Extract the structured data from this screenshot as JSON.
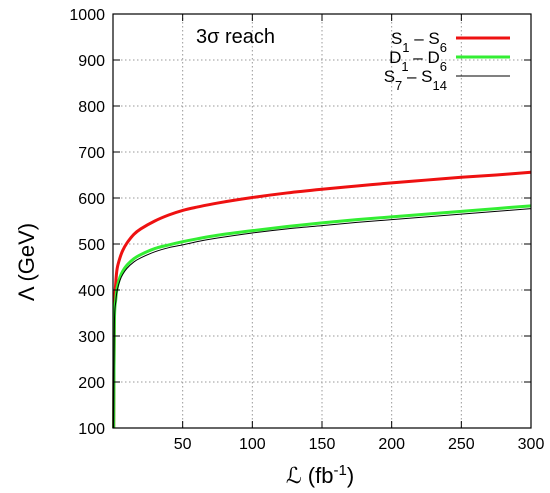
{
  "chart_data": {
    "type": "line",
    "title": "",
    "annotation": "3σ reach",
    "xlabel": {
      "prefix": "ℒ (fb",
      "sup": "-1",
      "suffix": ")"
    },
    "ylabel": "Λ (GeV)",
    "xlim": [
      0,
      300
    ],
    "ylim": [
      100,
      1000
    ],
    "xticks": [
      50,
      100,
      150,
      200,
      250,
      300
    ],
    "yticks": [
      100,
      200,
      300,
      400,
      500,
      600,
      700,
      800,
      900,
      1000
    ],
    "grid": true,
    "legend_position": "top-right",
    "series": [
      {
        "name": "S1 – S6",
        "label_parts": [
          [
            "S",
            ""
          ],
          [
            "1",
            "sub"
          ],
          [
            " – S",
            ""
          ],
          [
            "6",
            "sub"
          ]
        ],
        "color": "#ee1111",
        "stroke_width": 3,
        "x": [
          0.5,
          1,
          2,
          3,
          5,
          7,
          10,
          15,
          20,
          30,
          40,
          50,
          60,
          75,
          100,
          125,
          150,
          175,
          200,
          225,
          250,
          275,
          300
        ],
        "y": [
          100,
          348,
          416,
          447,
          470,
          486,
          502,
          521,
          533,
          550,
          563,
          573,
          580,
          589,
          601,
          611,
          619,
          626,
          633,
          639,
          645,
          650,
          656
        ]
      },
      {
        "name": "D1 – D6",
        "label_parts": [
          [
            "D",
            ""
          ],
          [
            "1",
            "sub"
          ],
          [
            " – D",
            ""
          ],
          [
            "6",
            "sub"
          ]
        ],
        "color": "#33ee33",
        "stroke_width": 3,
        "x": [
          0.5,
          1,
          2,
          3,
          5,
          7,
          10,
          15,
          20,
          30,
          40,
          50,
          60,
          75,
          100,
          125,
          150,
          175,
          200,
          225,
          250,
          275,
          300
        ],
        "y": [
          100,
          330,
          380,
          405,
          428,
          441,
          454,
          468,
          477,
          490,
          498,
          505,
          511,
          519,
          529,
          538,
          546,
          553,
          559,
          565,
          571,
          577,
          583
        ]
      },
      {
        "name": "S7 – S14",
        "label_parts": [
          [
            "S",
            ""
          ],
          [
            "7",
            "sub"
          ],
          [
            " – S",
            ""
          ],
          [
            "14",
            "sub"
          ]
        ],
        "color": "#000000",
        "stroke_width": 1,
        "x": [
          0.5,
          1,
          2,
          3,
          5,
          7,
          10,
          15,
          20,
          30,
          40,
          50,
          60,
          75,
          100,
          125,
          150,
          175,
          200,
          225,
          250,
          275,
          300
        ],
        "y": [
          100,
          325,
          375,
          399,
          421,
          434,
          447,
          461,
          470,
          483,
          492,
          498,
          505,
          513,
          524,
          533,
          540,
          547,
          553,
          559,
          565,
          571,
          577
        ]
      }
    ]
  }
}
